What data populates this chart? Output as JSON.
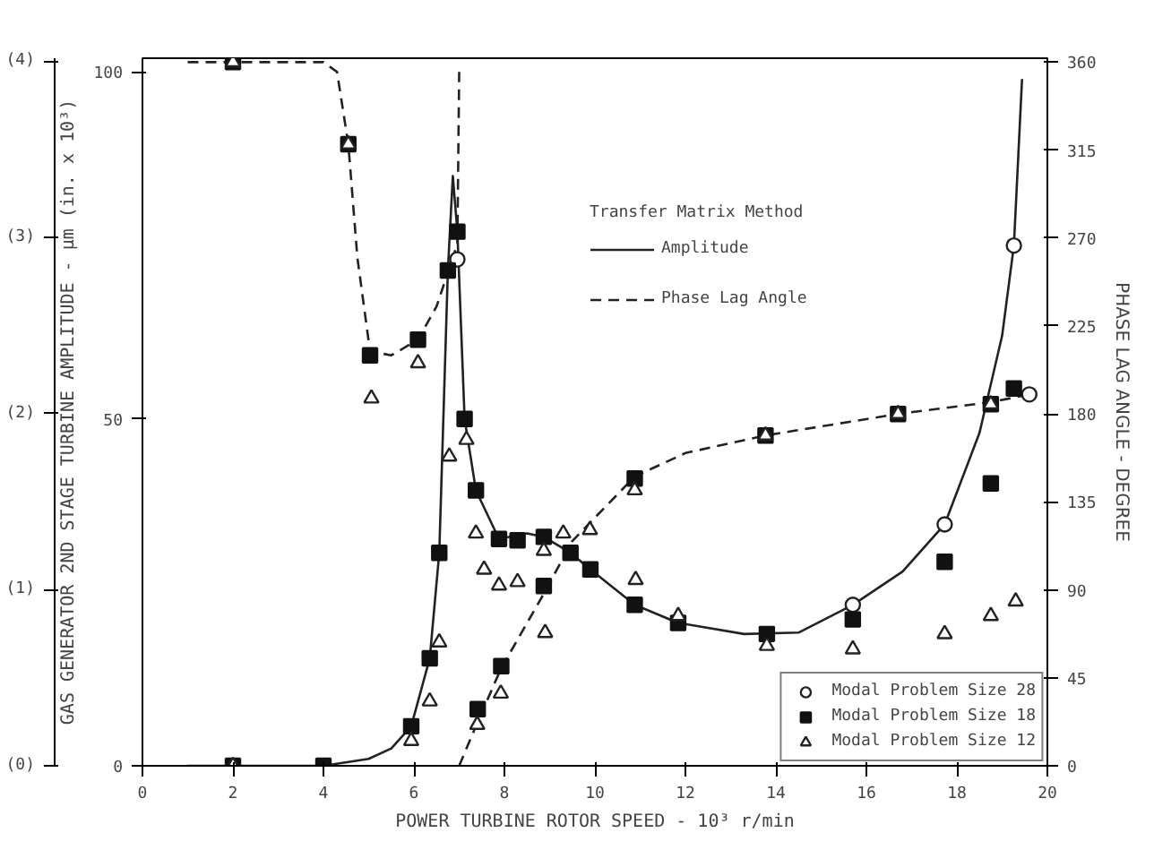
{
  "chart_data": {
    "type": "line",
    "xlabel": "POWER TURBINE ROTOR SPEED - 10³ r/min",
    "ylabel": "GAS GENERATOR 2ND STAGE TURBINE AMPLITUDE - μm (in. x 10³)",
    "y2label": "PHASE LAG ANGLE - DEGREE",
    "legend_title": "Transfer Matrix Method",
    "xlim": [
      0,
      20
    ],
    "xticks": [
      0,
      2,
      4,
      6,
      8,
      10,
      12,
      14,
      16,
      18,
      20
    ],
    "ylim": [
      0,
      102
    ],
    "yticks": [
      0,
      50,
      100
    ],
    "y2lim": [
      0,
      362
    ],
    "y2ticks": [
      0,
      45,
      90,
      135,
      180,
      225,
      270,
      315,
      360
    ],
    "y3lim": [
      0,
      4.016
    ],
    "y3ticks": [
      {
        "value": 0,
        "label": "(0)"
      },
      {
        "value": 1,
        "label": "(1)"
      },
      {
        "value": 2,
        "label": "(2)"
      },
      {
        "value": 3,
        "label": "(3)"
      },
      {
        "value": 4,
        "label": "(4)"
      }
    ],
    "grid": false,
    "legend": "bottom right",
    "series": [
      {
        "name": "Amplitude",
        "line_style": "solid",
        "marker": "none",
        "color": "#222222",
        "x": [
          1,
          4,
          5,
          5.5,
          5.94,
          6.35,
          6.56,
          6.75,
          6.86,
          6.96,
          7.12,
          7.37,
          7.88,
          8.5,
          8.87,
          9.46,
          9.9,
          10.88,
          11.84,
          13.3,
          14.5,
          15.7,
          16.8,
          17.73,
          18.5,
          19,
          19.26,
          19.44
        ],
        "values": [
          0,
          0,
          1,
          2.5,
          5.7,
          15.5,
          30.7,
          71.4,
          85,
          77,
          50,
          39.7,
          32.7,
          33.5,
          33,
          30.7,
          28.3,
          23.2,
          20.6,
          19,
          19.2,
          23.2,
          28,
          34.8,
          48,
          62,
          75,
          99
        ]
      },
      {
        "name": "Phase Lag Angle",
        "axis": "y2",
        "line_style": "dashed",
        "marker": "none",
        "color": "#222222",
        "x": [
          1,
          4,
          4.3,
          4.55,
          4.75,
          5.03,
          5.5,
          6.09,
          6.5,
          6.96,
          7.0
        ],
        "values": [
          360,
          360,
          355,
          318,
          260,
          212,
          210,
          218,
          235,
          267,
          355
        ]
      },
      {
        "axis": "y2",
        "line_style": "dashed",
        "marker": "none",
        "color": "#222222",
        "x": [
          7.0,
          7.4,
          7.93,
          8.87,
          9.5,
          10.88,
          12,
          13.77,
          16.7,
          18.75,
          19.6
        ],
        "values": [
          0,
          22,
          50,
          88,
          115,
          148,
          160,
          169,
          180,
          186,
          190
        ]
      },
      {
        "name": "Modal Problem Size 28",
        "type": "scatter",
        "marker": "circle",
        "color": "#222222",
        "x": [
          6.96,
          15.7,
          17.73,
          19.26
        ],
        "values": [
          73,
          23.2,
          34.8,
          75
        ]
      },
      {
        "type": "scatter",
        "axis": "y2",
        "marker": "circle",
        "color": "#222222",
        "x": [
          19.6
        ],
        "values": [
          190
        ]
      },
      {
        "name": "Modal Problem Size 18",
        "type": "scatter",
        "marker": "square",
        "color": "#111111",
        "x": [
          2,
          4,
          5.94,
          6.35,
          6.56,
          6.75,
          6.96,
          7.12,
          7.37,
          7.88,
          8.29,
          8.87,
          9.46,
          9.9,
          10.88,
          11.84,
          13.8,
          15.7,
          17.73,
          18.75
        ],
        "values": [
          0,
          0,
          5.7,
          15.5,
          30.7,
          71.4,
          77,
          50,
          39.7,
          32.7,
          32.5,
          33,
          30.7,
          28.3,
          23.2,
          20.6,
          19,
          21.1,
          29.4,
          40.7
        ]
      },
      {
        "type": "scatter",
        "axis": "y2",
        "marker": "square",
        "color": "#111111",
        "x": [
          2,
          4.55,
          5.03,
          6.09,
          7.41,
          7.93,
          8.87,
          10.88,
          13.77,
          16.7,
          18.75,
          19.26
        ],
        "values": [
          360,
          318,
          210,
          218,
          29,
          51,
          92,
          147,
          169,
          180,
          185,
          193
        ]
      },
      {
        "name": "Modal Problem Size 12",
        "type": "scatter",
        "marker": "triangle",
        "color": "#222222",
        "x": [
          2,
          5.94,
          6.35,
          6.56,
          6.78,
          7.16,
          7.37,
          7.55,
          7.88,
          8.29,
          8.87,
          9.3,
          9.89,
          10.9,
          11.84,
          13.8,
          15.7,
          17.73,
          18.75,
          19.3
        ],
        "values": [
          0,
          3.6,
          9.3,
          17.8,
          44.6,
          47,
          33.5,
          28.3,
          26,
          26.5,
          31,
          33.5,
          34,
          26.8,
          21.6,
          17.3,
          16.8,
          19,
          21.6,
          23.7
        ]
      },
      {
        "type": "scatter",
        "axis": "y2",
        "marker": "triangle",
        "color": "#222222",
        "x": [
          2,
          4.55,
          5.06,
          6.09,
          7.4,
          7.92,
          8.9,
          10.88,
          13.77,
          16.7,
          18.75
        ],
        "values": [
          360,
          318,
          188,
          206,
          21,
          37,
          68,
          141,
          169,
          180,
          185
        ]
      }
    ]
  }
}
